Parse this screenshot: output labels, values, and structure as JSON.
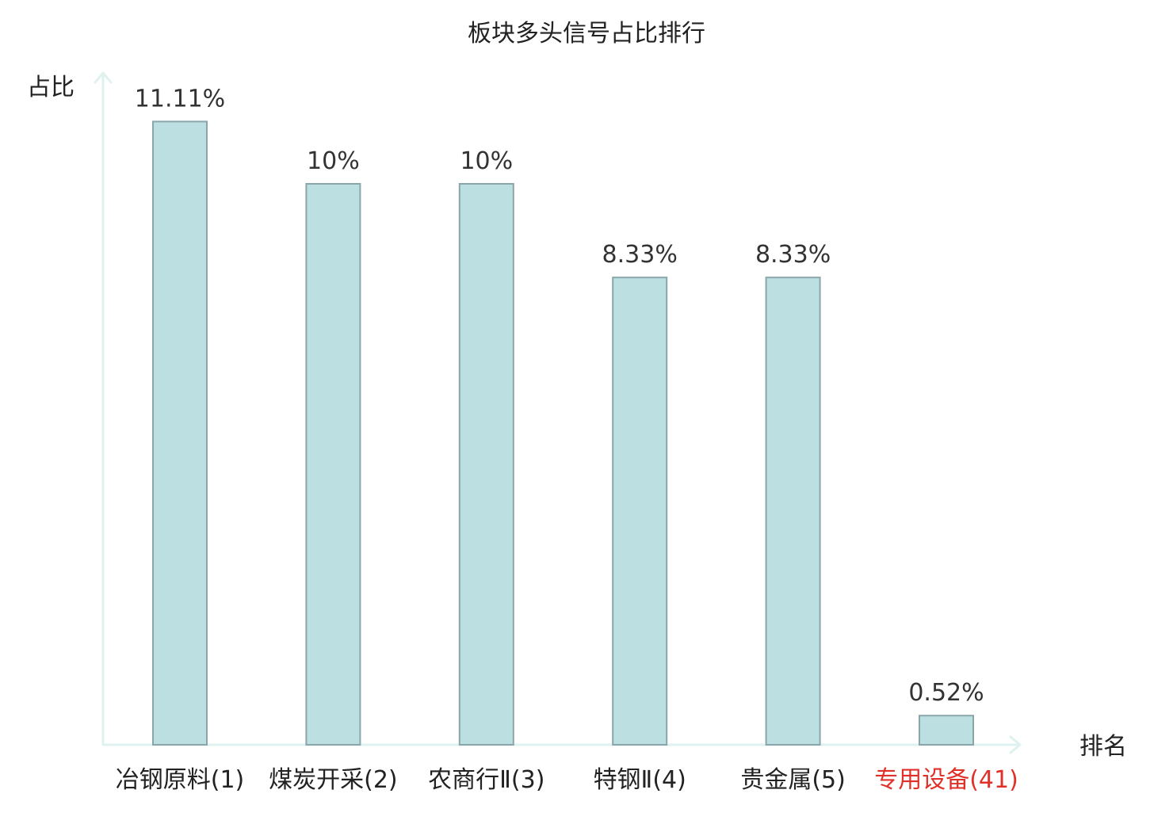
{
  "chart_data": {
    "type": "bar",
    "title": "板块多头信号占比排行",
    "ylabel": "占比",
    "xlabel": "排名",
    "ylim": [
      0,
      12
    ],
    "grid": false,
    "legend": "none",
    "categories": [
      {
        "name": "冶钢原料",
        "rank": "(1)",
        "highlight": false
      },
      {
        "name": "煤炭开采",
        "rank": "(2)",
        "highlight": false
      },
      {
        "name": "农商行Ⅱ",
        "rank": "(3)",
        "highlight": false
      },
      {
        "name": "特钢Ⅱ",
        "rank": "(4)",
        "highlight": false
      },
      {
        "name": "贵金属",
        "rank": "(5)",
        "highlight": false
      },
      {
        "name": "专用设备",
        "rank": "(41)",
        "highlight": true
      }
    ],
    "values": [
      11.11,
      10,
      10,
      8.33,
      8.33,
      0.52
    ],
    "value_labels": [
      "11.11%",
      "10%",
      "10%",
      "8.33%",
      "8.33%",
      "0.52%"
    ]
  },
  "colors": {
    "bar_fill": "#bce0e2",
    "bar_stroke": "#8aa6aa",
    "axis": "#dff2ef",
    "text": "#222222",
    "value_text": "#333333",
    "highlight": "#e0302a"
  }
}
